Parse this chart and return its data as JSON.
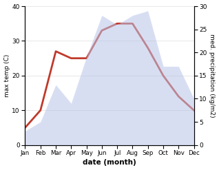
{
  "months": [
    "Jan",
    "Feb",
    "Mar",
    "Apr",
    "May",
    "Jun",
    "Jul",
    "Aug",
    "Sep",
    "Oct",
    "Nov",
    "Dec"
  ],
  "temperature": [
    5,
    10,
    27,
    25,
    25,
    33,
    35,
    35,
    28,
    20,
    14,
    10
  ],
  "precipitation": [
    3,
    5,
    13,
    9,
    19,
    28,
    26,
    28,
    29,
    17,
    17,
    10
  ],
  "temp_color": "#c0392b",
  "precip_fill_color": "#b8c4e8",
  "precip_edge_color": "#b8c4e8",
  "precip_fill_alpha": 0.55,
  "temp_ylim": [
    0,
    40
  ],
  "precip_ylim": [
    0,
    30
  ],
  "temp_yticks": [
    0,
    10,
    20,
    30,
    40
  ],
  "precip_yticks": [
    0,
    5,
    10,
    15,
    20,
    25,
    30
  ],
  "xlabel": "date (month)",
  "ylabel_left": "max temp (C)",
  "ylabel_right": "med. precipitation (kg/m2)",
  "linewidth": 2.0,
  "bg_color": "#f5f5f5"
}
